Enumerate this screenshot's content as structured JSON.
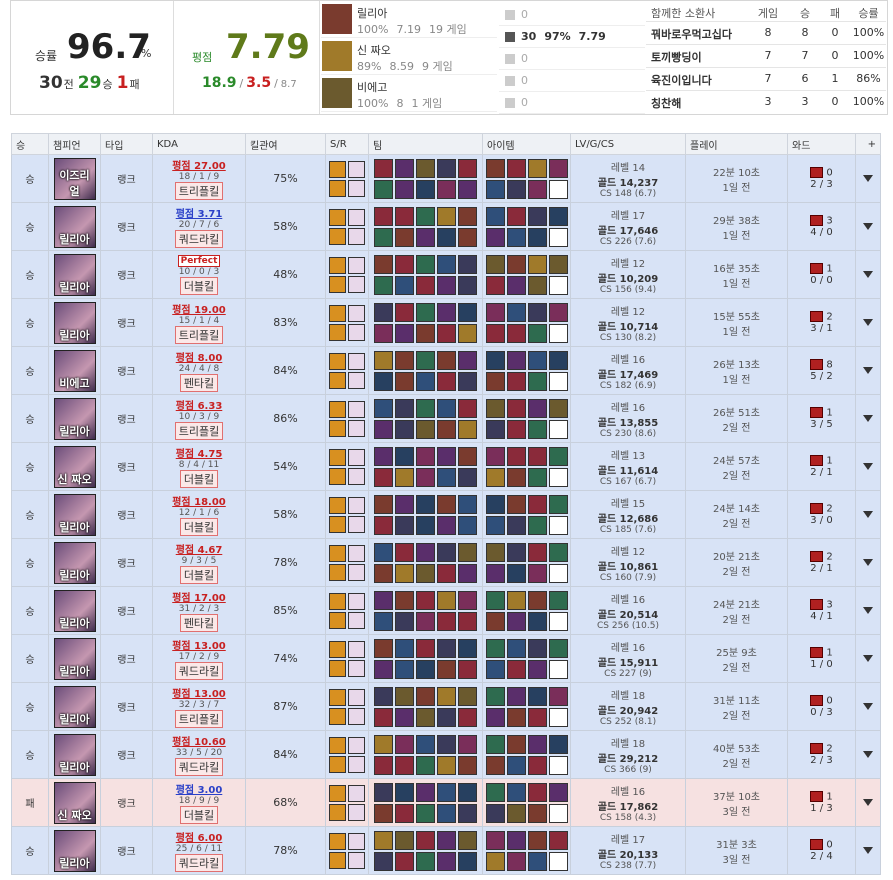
{
  "summary": {
    "winrate_label": "승률",
    "winrate": "96.7",
    "pct": "%",
    "games": "30",
    "games_unit": "전",
    "wins": "29",
    "wins_unit": "승",
    "losses": "1",
    "losses_unit": "패"
  },
  "rating": {
    "label": "평점",
    "value": "7.79",
    "kills": "18.9",
    "deaths": "3.5",
    "assists": "8.7",
    "separator": "/"
  },
  "champions": [
    {
      "name": "릴리아",
      "winrate": "100%",
      "rating": "7.19",
      "games": "19 게임"
    },
    {
      "name": "신 짜오",
      "winrate": "89%",
      "rating": "8.59",
      "games": "9 게임"
    },
    {
      "name": "비에고",
      "winrate": "100%",
      "rating": "8",
      "games": "1 게임"
    }
  ],
  "positions": [
    {
      "games": "0"
    },
    {
      "games": "30",
      "winrate": "97%",
      "rating": "7.79"
    },
    {
      "games": "0"
    },
    {
      "games": "0"
    },
    {
      "games": "0"
    }
  ],
  "duo": {
    "header": [
      "함께한 소환사",
      "게임",
      "승",
      "패",
      "승률"
    ],
    "rows": [
      [
        "꿔바로우먹고십다",
        "8",
        "8",
        "0",
        "100%"
      ],
      [
        "토끼빵딩이",
        "7",
        "7",
        "0",
        "100%"
      ],
      [
        "육진이입니다",
        "7",
        "6",
        "1",
        "86%"
      ],
      [
        "칭찬해",
        "3",
        "3",
        "0",
        "100%"
      ]
    ]
  },
  "table": {
    "header": [
      "승",
      "챔피언",
      "타입",
      "KDA",
      "킬관여",
      "S/R",
      "팀",
      "아이템",
      "LV/G/CS",
      "플레이",
      "와드",
      "+"
    ],
    "rows": [
      {
        "result": "승",
        "champion": "이즈리얼",
        "type": "랭크",
        "rating": "평점 27.00",
        "rating_color": "red",
        "kda": "18 / 1 / 9",
        "multikill": "트리플킬",
        "kp": "75%",
        "level": "레벨 14",
        "gold": "골드 14,237",
        "cs": "CS 148 (6.7)",
        "duration": "22분 10초",
        "ago": "1일 전",
        "wards": "0",
        "ward_kills": "2 / 3"
      },
      {
        "result": "승",
        "champion": "릴리아",
        "type": "랭크",
        "rating": "평점 3.71",
        "rating_color": "blue",
        "kda": "20 / 7 / 6",
        "multikill": "쿼드라킬",
        "kp": "58%",
        "level": "레벨 17",
        "gold": "골드 17,646",
        "cs": "CS 226 (7.6)",
        "duration": "29분 38초",
        "ago": "1일 전",
        "wards": "3",
        "ward_kills": "4 / 0"
      },
      {
        "result": "승",
        "champion": "릴리아",
        "type": "랭크",
        "rating": "Perfect",
        "rating_color": "perfect",
        "kda": "10 / 0 / 3",
        "multikill": "더블킬",
        "kp": "48%",
        "level": "레벨 12",
        "gold": "골드 10,209",
        "cs": "CS 156 (9.4)",
        "duration": "16분 35초",
        "ago": "1일 전",
        "wards": "1",
        "ward_kills": "0 / 0"
      },
      {
        "result": "승",
        "champion": "릴리아",
        "type": "랭크",
        "rating": "평점 19.00",
        "rating_color": "red",
        "kda": "15 / 1 / 4",
        "multikill": "트리플킬",
        "kp": "83%",
        "level": "레벨 12",
        "gold": "골드 10,714",
        "cs": "CS 130 (8.2)",
        "duration": "15분 55초",
        "ago": "1일 전",
        "wards": "2",
        "ward_kills": "3 / 1"
      },
      {
        "result": "승",
        "champion": "비에고",
        "type": "랭크",
        "rating": "평점 8.00",
        "rating_color": "red",
        "kda": "24 / 4 / 8",
        "multikill": "펜타킬",
        "kp": "84%",
        "level": "레벨 16",
        "gold": "골드 17,469",
        "cs": "CS 182 (6.9)",
        "duration": "26분 13초",
        "ago": "1일 전",
        "wards": "8",
        "ward_kills": "5 / 2"
      },
      {
        "result": "승",
        "champion": "릴리아",
        "type": "랭크",
        "rating": "평점 6.33",
        "rating_color": "red",
        "kda": "10 / 3 / 9",
        "multikill": "트리플킬",
        "kp": "86%",
        "level": "레벨 16",
        "gold": "골드 13,855",
        "cs": "CS 230 (8.6)",
        "duration": "26분 51초",
        "ago": "2일 전",
        "wards": "1",
        "ward_kills": "3 / 5"
      },
      {
        "result": "승",
        "champion": "신 짜오",
        "type": "랭크",
        "rating": "평점 4.75",
        "rating_color": "red",
        "kda": "8 / 4 / 11",
        "multikill": "더블킬",
        "kp": "54%",
        "level": "레벨 13",
        "gold": "골드 11,614",
        "cs": "CS 167 (6.7)",
        "duration": "24분 57초",
        "ago": "2일 전",
        "wards": "1",
        "ward_kills": "2 / 1"
      },
      {
        "result": "승",
        "champion": "릴리아",
        "type": "랭크",
        "rating": "평점 18.00",
        "rating_color": "red",
        "kda": "12 / 1 / 6",
        "multikill": "더블킬",
        "kp": "58%",
        "level": "레벨 15",
        "gold": "골드 12,686",
        "cs": "CS 185 (7.6)",
        "duration": "24분 14초",
        "ago": "2일 전",
        "wards": "2",
        "ward_kills": "3 / 0"
      },
      {
        "result": "승",
        "champion": "릴리아",
        "type": "랭크",
        "rating": "평점 4.67",
        "rating_color": "red",
        "kda": "9 / 3 / 5",
        "multikill": "더블킬",
        "kp": "78%",
        "level": "레벨 12",
        "gold": "골드 10,861",
        "cs": "CS 160 (7.9)",
        "duration": "20분 21초",
        "ago": "2일 전",
        "wards": "2",
        "ward_kills": "2 / 1"
      },
      {
        "result": "승",
        "champion": "릴리아",
        "type": "랭크",
        "rating": "평점 17.00",
        "rating_color": "red",
        "kda": "31 / 2 / 3",
        "multikill": "펜타킬",
        "kp": "85%",
        "level": "레벨 16",
        "gold": "골드 20,514",
        "cs": "CS 256 (10.5)",
        "duration": "24분 21초",
        "ago": "2일 전",
        "wards": "3",
        "ward_kills": "4 / 1"
      },
      {
        "result": "승",
        "champion": "릴리아",
        "type": "랭크",
        "rating": "평점 13.00",
        "rating_color": "red",
        "kda": "17 / 2 / 9",
        "multikill": "쿼드라킬",
        "kp": "74%",
        "level": "레벨 16",
        "gold": "골드 15,911",
        "cs": "CS 227 (9)",
        "duration": "25분 9초",
        "ago": "2일 전",
        "wards": "1",
        "ward_kills": "1 / 0"
      },
      {
        "result": "승",
        "champion": "릴리아",
        "type": "랭크",
        "rating": "평점 13.00",
        "rating_color": "red",
        "kda": "32 / 3 / 7",
        "multikill": "트리플킬",
        "kp": "87%",
        "level": "레벨 18",
        "gold": "골드 20,942",
        "cs": "CS 252 (8.1)",
        "duration": "31분 11초",
        "ago": "2일 전",
        "wards": "0",
        "ward_kills": "0 / 3"
      },
      {
        "result": "승",
        "champion": "릴리아",
        "type": "랭크",
        "rating": "평점 10.60",
        "rating_color": "red",
        "kda": "33 / 5 / 20",
        "multikill": "쿼드라킬",
        "kp": "84%",
        "level": "레벨 18",
        "gold": "골드 29,212",
        "cs": "CS 366 (9)",
        "duration": "40분 53초",
        "ago": "2일 전",
        "wards": "2",
        "ward_kills": "2 / 3"
      },
      {
        "result": "패",
        "champion": "신 짜오",
        "type": "랭크",
        "rating": "평점 3.00",
        "rating_color": "blue",
        "kda": "18 / 9 / 9",
        "multikill": "더블킬",
        "kp": "68%",
        "level": "레벨 16",
        "gold": "골드 17,862",
        "cs": "CS 158 (4.3)",
        "duration": "37분 10초",
        "ago": "3일 전",
        "wards": "1",
        "ward_kills": "1 / 3"
      },
      {
        "result": "승",
        "champion": "릴리아",
        "type": "랭크",
        "rating": "평점 6.00",
        "rating_color": "red",
        "kda": "25 / 6 / 11",
        "multikill": "쿼드라킬",
        "kp": "78%",
        "level": "레벨 17",
        "gold": "골드 20,133",
        "cs": "CS 238 (7.7)",
        "duration": "31분 3초",
        "ago": "3일 전",
        "wards": "0",
        "ward_kills": "2 / 4"
      }
    ]
  }
}
